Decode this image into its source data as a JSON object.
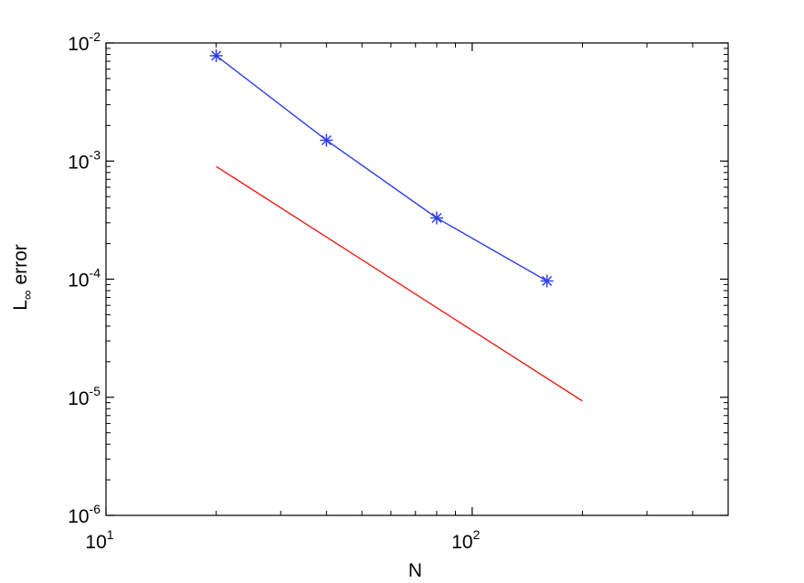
{
  "chart_data": {
    "type": "line",
    "xscale": "log",
    "yscale": "log",
    "xlim": [
      10,
      500
    ],
    "ylim": [
      1e-06,
      0.01
    ],
    "xlabel": "N",
    "ylabel": {
      "main": "L",
      "subscript": "∞",
      "rest": " error"
    },
    "grid": false,
    "x_ticks": [
      {
        "value": 10,
        "base": "10",
        "exp": "1"
      },
      {
        "value": 100,
        "base": "10",
        "exp": "2"
      }
    ],
    "y_ticks": [
      {
        "value": 1e-06,
        "base": "10",
        "exp": "-6"
      },
      {
        "value": 1e-05,
        "base": "10",
        "exp": "-5"
      },
      {
        "value": 0.0001,
        "base": "10",
        "exp": "-4"
      },
      {
        "value": 0.001,
        "base": "10",
        "exp": "-3"
      },
      {
        "value": 0.01,
        "base": "10",
        "exp": "-2"
      }
    ],
    "series": [
      {
        "x": [
          20,
          40,
          80,
          160
        ],
        "y": [
          0.0078,
          0.0015,
          0.00033,
          9.65e-05
        ],
        "color": "#2f3fe0",
        "marker": "asterisk"
      },
      {
        "x": [
          20,
          200
        ],
        "y": [
          0.0009,
          9.3e-06
        ],
        "color": "#e8201a",
        "marker": "none"
      }
    ]
  }
}
